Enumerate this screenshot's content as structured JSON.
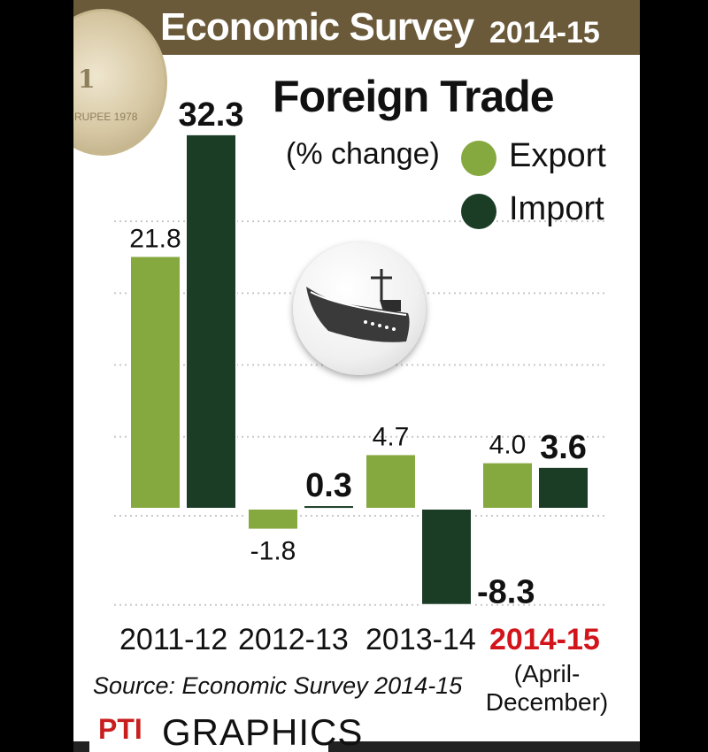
{
  "header": {
    "title": "Economic Survey",
    "year": "2014-15"
  },
  "coin": {
    "value": "1",
    "text": "RUPEE 1978"
  },
  "title": "Foreign Trade",
  "subtitle": "(% change)",
  "legend": [
    {
      "label": "Export",
      "color": "#85a83f"
    },
    {
      "label": "Import",
      "color": "#1b3d26"
    }
  ],
  "period_note": "(April-December)",
  "source": "Source: Economic Survey 2014-15",
  "brand": {
    "logo": "PTI",
    "text": "GRAPHICS"
  },
  "colors": {
    "header_bg": "#6b5a3a",
    "highlight": "#d2141b",
    "grid": "#c8c8c8"
  },
  "chart_data": {
    "type": "bar",
    "title": "Foreign Trade",
    "ylabel": "(% change)",
    "categories": [
      "2011-12",
      "2012-13",
      "2013-14",
      "2014-15"
    ],
    "series": [
      {
        "name": "Export",
        "values": [
          21.8,
          -1.8,
          4.7,
          4.0
        ],
        "labels": [
          "21.8",
          "-1.8",
          "4.7",
          "4.0"
        ]
      },
      {
        "name": "Import",
        "values": [
          32.3,
          0.3,
          -8.3,
          3.6
        ],
        "labels": [
          "32.3",
          "0.3",
          "-8.3",
          "3.6"
        ]
      }
    ],
    "ylim": [
      -10,
      34
    ],
    "grid": true,
    "legend_position": "top-right"
  }
}
